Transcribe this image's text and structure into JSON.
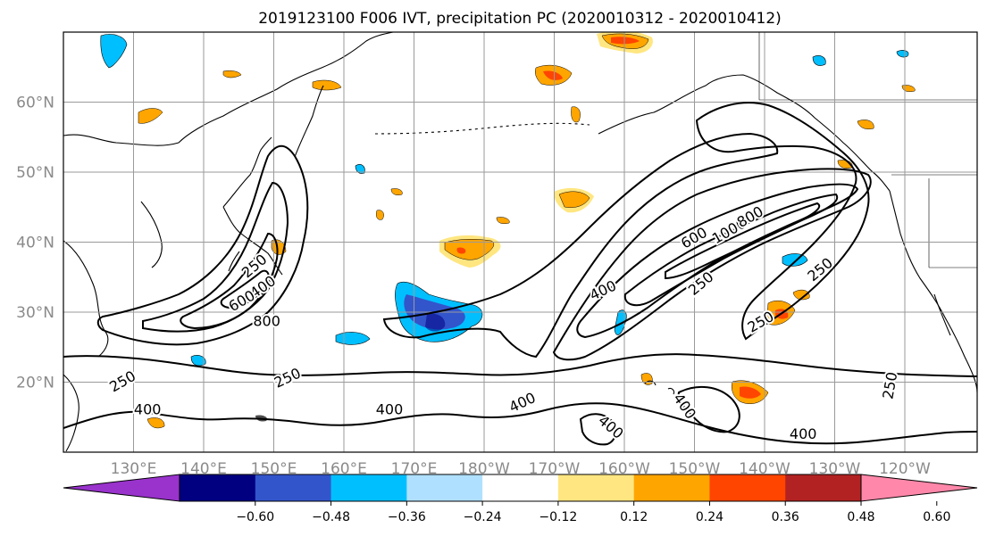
{
  "title": "2019123100 F006 IVT, precipitation PC (2020010312 - 2020010412)",
  "map": {
    "lat_labels": [
      "60°N",
      "50°N",
      "40°N",
      "30°N",
      "20°N"
    ],
    "lon_labels": [
      "130°E",
      "140°E",
      "150°E",
      "160°E",
      "170°E",
      "180°W",
      "170°W",
      "160°W",
      "150°W",
      "140°W",
      "130°W",
      "120°W"
    ],
    "ivt_contour_levels": [
      250,
      400,
      600,
      800,
      1000
    ],
    "contour_labels": [
      {
        "text": "250",
        "lat": 36.5,
        "lon": 147.3,
        "rot": -40
      },
      {
        "text": "400",
        "lat": 33.5,
        "lon": 148.5,
        "rot": -35
      },
      {
        "text": "600",
        "lat": 31.5,
        "lon": 145.5,
        "rot": -30
      },
      {
        "text": "800",
        "lat": 28.6,
        "lon": 149.0,
        "rot": 0
      },
      {
        "text": "250",
        "lat": 20.0,
        "lon": 128.5,
        "rot": -30
      },
      {
        "text": "250",
        "lat": 20.5,
        "lon": 152.0,
        "rot": -25
      },
      {
        "text": "400",
        "lat": 16.0,
        "lon": 132.0,
        "rot": 0
      },
      {
        "text": "400",
        "lat": 16.0,
        "lon": 166.5,
        "rot": 0
      },
      {
        "text": "400",
        "lat": 17.0,
        "lon": -174.5,
        "rot": -25
      },
      {
        "text": "400",
        "lat": 13.5,
        "lon": -162.0,
        "rot": 40
      },
      {
        "text": "400",
        "lat": 16.5,
        "lon": -151.5,
        "rot": 55
      },
      {
        "text": "400",
        "lat": 12.5,
        "lon": -134.5,
        "rot": 0
      },
      {
        "text": "400",
        "lat": 33.0,
        "lon": -163.0,
        "rot": -25
      },
      {
        "text": "250",
        "lat": 34.0,
        "lon": -149.0,
        "rot": -40
      },
      {
        "text": "600",
        "lat": 40.5,
        "lon": -150.0,
        "rot": -30
      },
      {
        "text": "1000",
        "lat": 41.5,
        "lon": -145.0,
        "rot": -30
      },
      {
        "text": "800",
        "lat": 43.5,
        "lon": -142.0,
        "rot": -30
      },
      {
        "text": "250",
        "lat": 36.0,
        "lon": -132.0,
        "rot": -40
      },
      {
        "text": "250",
        "lat": 28.5,
        "lon": -140.5,
        "rot": -30
      },
      {
        "text": "250",
        "lat": 19.5,
        "lon": -122.0,
        "rot": -80
      }
    ]
  },
  "colorbar": {
    "tick_labels": [
      "-0.60",
      "-0.48",
      "-0.36",
      "-0.24",
      "-0.12",
      "0.12",
      "0.24",
      "0.36",
      "0.48",
      "0.60"
    ],
    "colors": [
      "#9933cc",
      "#000080",
      "#3355cc",
      "#00bfff",
      "#b0e0ff",
      "#ffffff",
      "#ffe680",
      "#ffa500",
      "#ff4500",
      "#b22222",
      "#ff88aa"
    ]
  }
}
